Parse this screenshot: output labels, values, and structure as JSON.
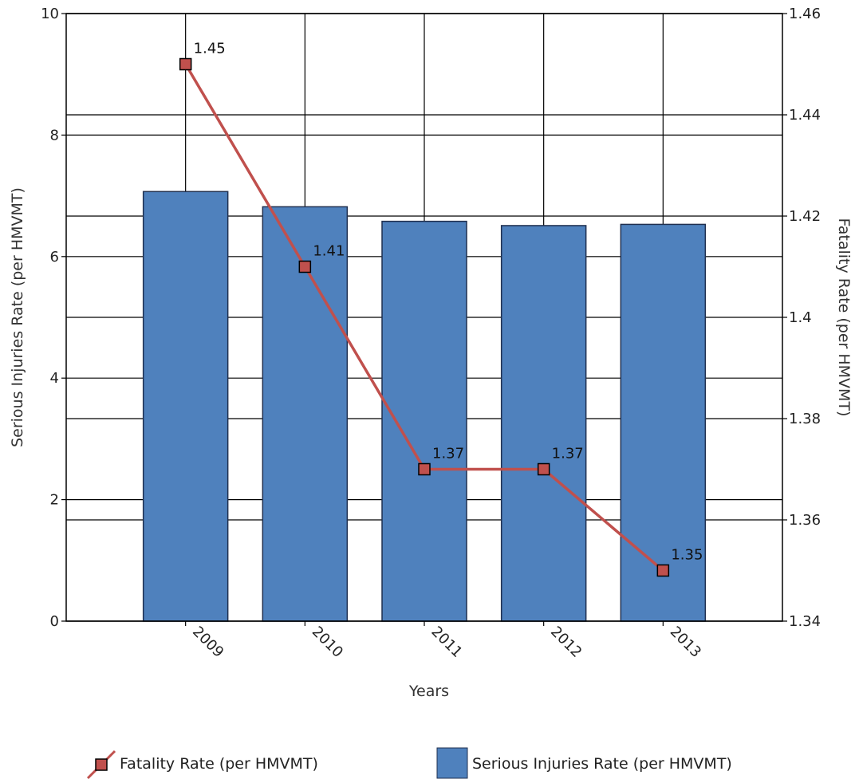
{
  "chart_data": {
    "type": "bar",
    "categories": [
      "2009",
      "2010",
      "2011",
      "2012",
      "2013"
    ],
    "series": [
      {
        "name": "Serious Injuries Rate (per HMVMT)",
        "kind": "bar",
        "axis": "left",
        "color": "#4f81bd",
        "values": [
          7.07,
          6.82,
          6.58,
          6.51,
          6.53
        ]
      },
      {
        "name": "Fatality Rate (per HMVMT)",
        "kind": "line",
        "axis": "right",
        "color": "#c0504d",
        "values": [
          1.45,
          1.41,
          1.37,
          1.37,
          1.35
        ],
        "labels": [
          "1.45",
          "1.41",
          "1.37",
          "1.37",
          "1.35"
        ]
      }
    ],
    "xlabel": "Years",
    "ylabel": "Serious Injuries Rate (per HMVMT)",
    "y2label": "Fatality Rate (per HMVMT)",
    "ylim": [
      0,
      10
    ],
    "y2lim": [
      1.34,
      1.46
    ],
    "yticks": [
      "0",
      "2",
      "4",
      "6",
      "8",
      "10"
    ],
    "y2ticks": [
      "1.34",
      "1.36",
      "1.38",
      "1.4",
      "1.42",
      "1.44",
      "1.46"
    ],
    "grid": true,
    "legend": "bottom"
  }
}
